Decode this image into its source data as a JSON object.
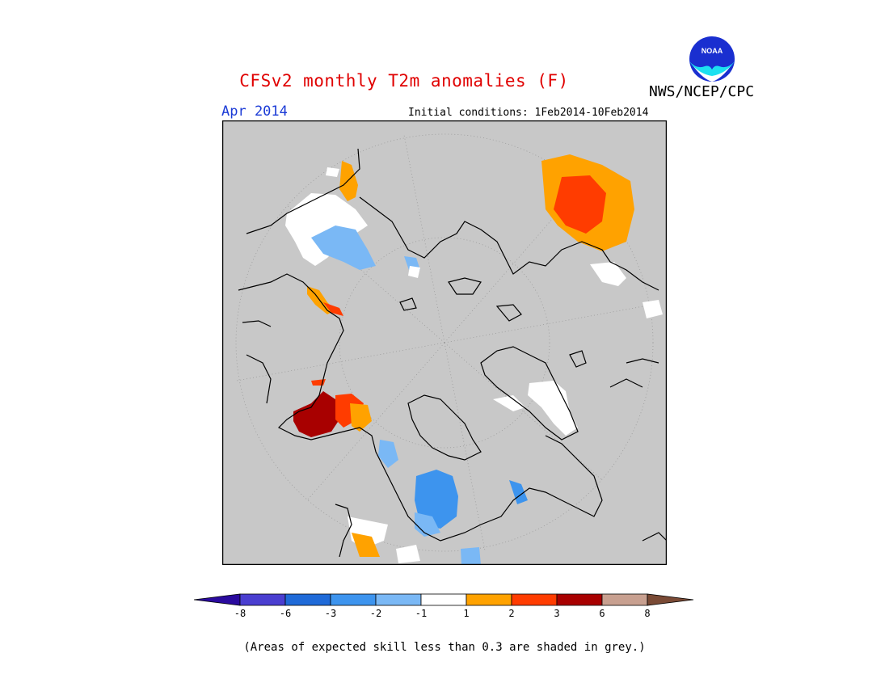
{
  "header": {
    "title": "CFSv2 monthly T2m anomalies (F)",
    "month": "Apr 2014",
    "initial_conditions": "Initial conditions: 1Feb2014-10Feb2014",
    "agency": "NWS/NCEP/CPC",
    "logo_text": "NOAA"
  },
  "colorbar": {
    "labels": [
      "-8",
      "-6",
      "-3",
      "-2",
      "-1",
      "1",
      "2",
      "3",
      "6",
      "8"
    ],
    "colors": [
      "#2a0a9e",
      "#4a3ed0",
      "#1f6ad8",
      "#3d94ee",
      "#7ab8f5",
      "#ffffff",
      "#ffa200",
      "#ff3c00",
      "#a80000",
      "#c8a090",
      "#7a4a35"
    ]
  },
  "footer": {
    "note": "(Areas of expected skill less than 0.3 are shaded in grey.)"
  },
  "colors": {
    "title": "#e00000",
    "month": "#1b3bd6",
    "map_background": "#c8c8c8",
    "coastline": "#000000"
  }
}
